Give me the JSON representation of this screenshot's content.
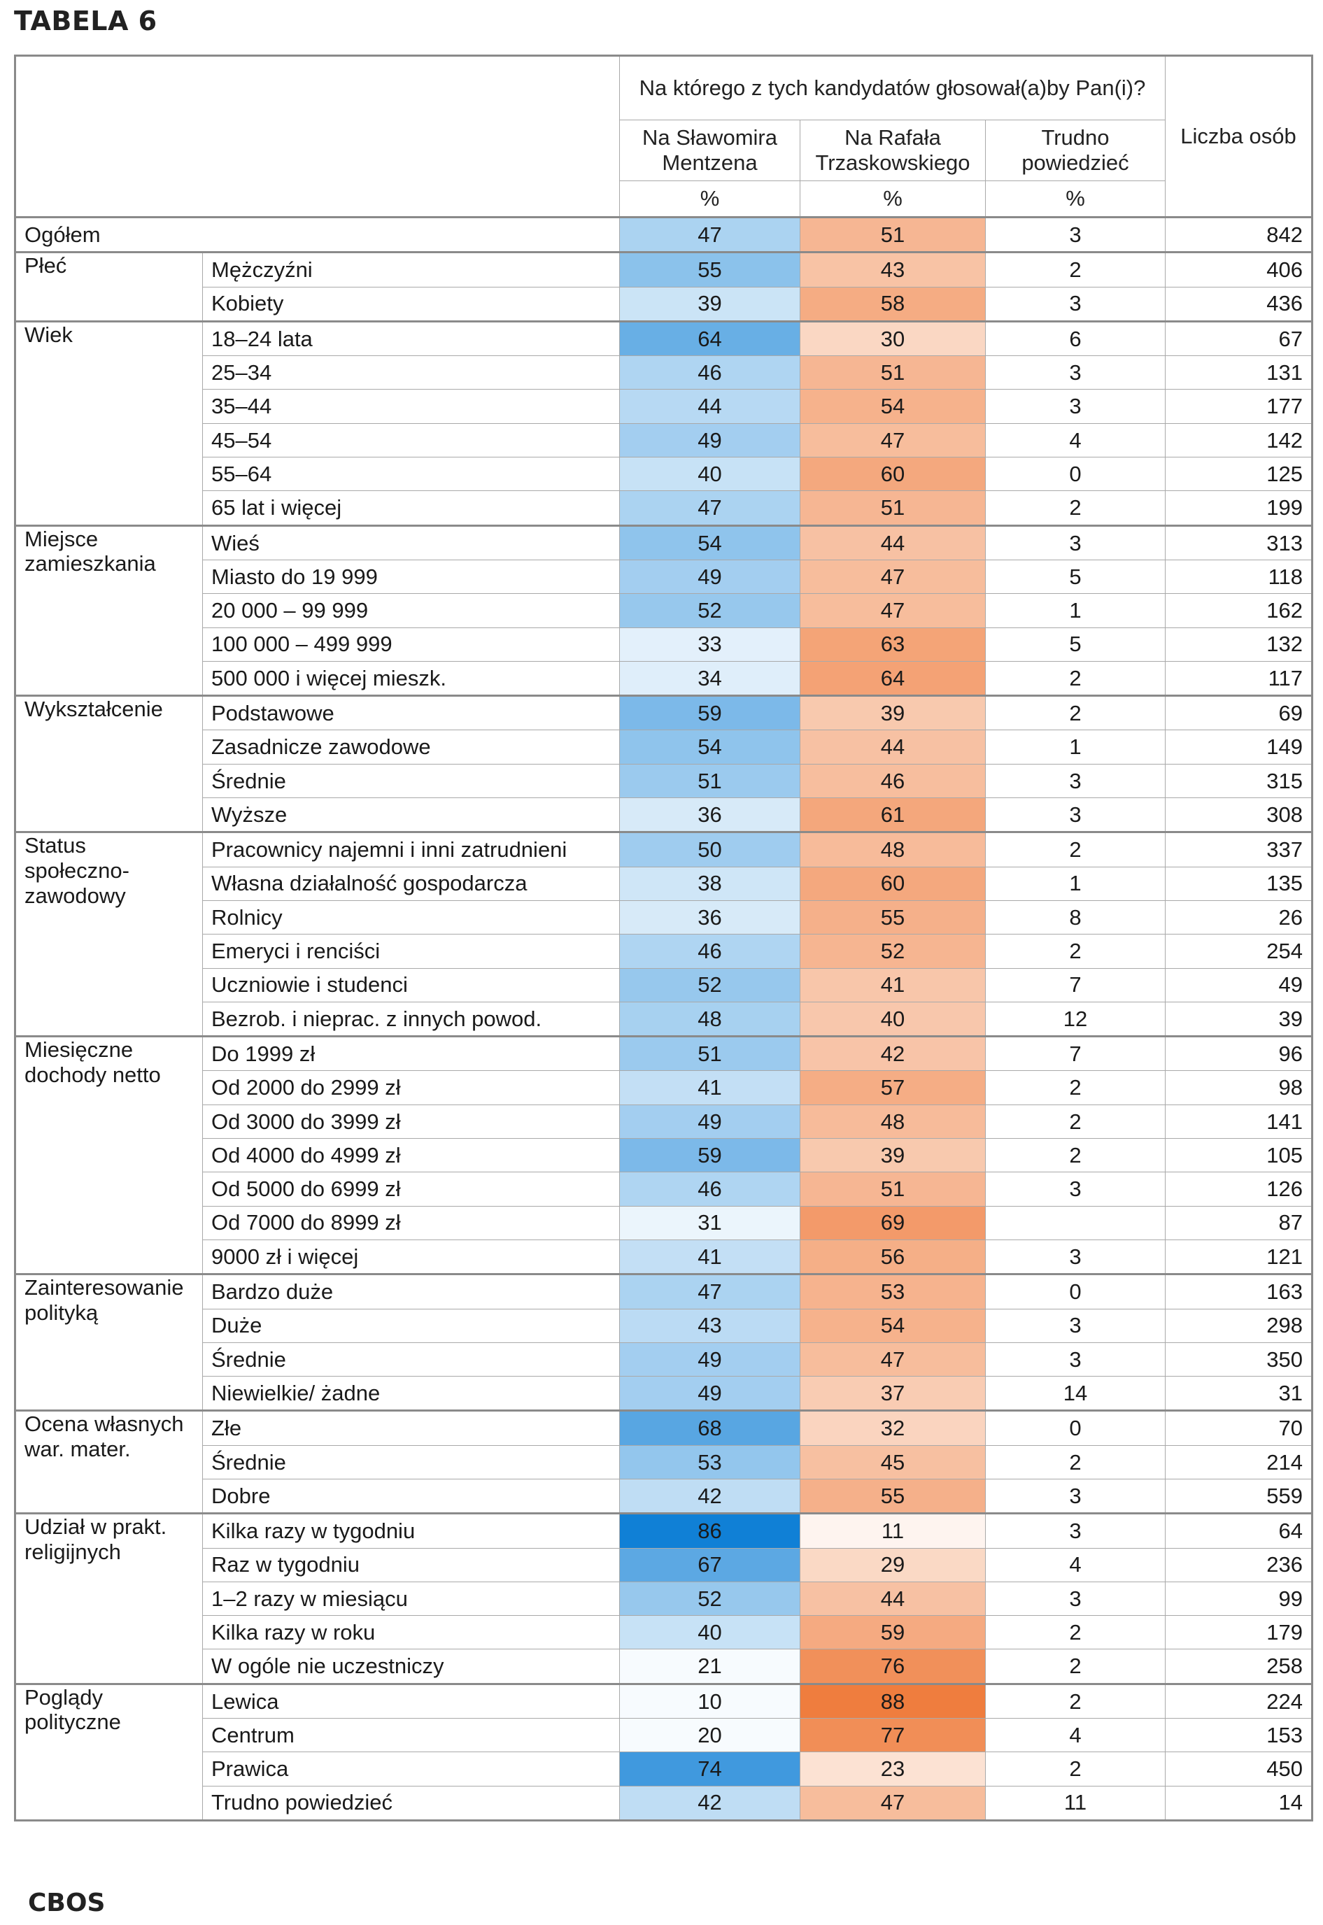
{
  "title": "TABELA 6",
  "footer": "CBOS",
  "header": {
    "question": "Na którego z tych kandydatów głosował(a)by Pan(i)?",
    "col_mentzen": "Na Sławomira Mentzena",
    "col_trzaskowski": "Na Rafała Trzaskowskiego",
    "col_trudno": "Trudno powiedzieć",
    "col_liczba": "Liczba osób",
    "pct_mentzen": "%",
    "pct_trzaskowski": "%",
    "pct_trudno": "%"
  },
  "colors": {
    "mentzen_scale": [
      "#f7fbfe",
      "#1080d6"
    ],
    "trzaskowski_scale": [
      "#fef6f1",
      "#ef7d3e"
    ]
  },
  "groups": [
    {
      "label": "Ogółem",
      "rows": [
        {
          "sub": "",
          "m": 47,
          "t": 51,
          "d": "3",
          "n": "842"
        }
      ]
    },
    {
      "label": "Płeć",
      "rows": [
        {
          "sub": "Mężczyźni",
          "m": 55,
          "t": 43,
          "d": "2",
          "n": "406"
        },
        {
          "sub": "Kobiety",
          "m": 39,
          "t": 58,
          "d": "3",
          "n": "436"
        }
      ]
    },
    {
      "label": "Wiek",
      "rows": [
        {
          "sub": "18–24 lata",
          "m": 64,
          "t": 30,
          "d": "6",
          "n": "67"
        },
        {
          "sub": "25–34",
          "m": 46,
          "t": 51,
          "d": "3",
          "n": "131"
        },
        {
          "sub": "35–44",
          "m": 44,
          "t": 54,
          "d": "3",
          "n": "177"
        },
        {
          "sub": "45–54",
          "m": 49,
          "t": 47,
          "d": "4",
          "n": "142"
        },
        {
          "sub": "55–64",
          "m": 40,
          "t": 60,
          "d": "0",
          "n": "125"
        },
        {
          "sub": "65 lat i więcej",
          "m": 47,
          "t": 51,
          "d": "2",
          "n": "199"
        }
      ]
    },
    {
      "label": "Miejsce zamieszkania",
      "rows": [
        {
          "sub": "Wieś",
          "m": 54,
          "t": 44,
          "d": "3",
          "n": "313"
        },
        {
          "sub": "Miasto do 19 999",
          "m": 49,
          "t": 47,
          "d": "5",
          "n": "118"
        },
        {
          "sub": "20 000 – 99 999",
          "m": 52,
          "t": 47,
          "d": "1",
          "n": "162"
        },
        {
          "sub": "100 000 – 499 999",
          "m": 33,
          "t": 63,
          "d": "5",
          "n": "132"
        },
        {
          "sub": "500 000 i więcej mieszk.",
          "m": 34,
          "t": 64,
          "d": "2",
          "n": "117"
        }
      ]
    },
    {
      "label": "Wykształcenie",
      "rows": [
        {
          "sub": "Podstawowe",
          "m": 59,
          "t": 39,
          "d": "2",
          "n": "69"
        },
        {
          "sub": "Zasadnicze zawodowe",
          "m": 54,
          "t": 44,
          "d": "1",
          "n": "149"
        },
        {
          "sub": "Średnie",
          "m": 51,
          "t": 46,
          "d": "3",
          "n": "315"
        },
        {
          "sub": "Wyższe",
          "m": 36,
          "t": 61,
          "d": "3",
          "n": "308"
        }
      ]
    },
    {
      "label": "Status społeczno-zawodowy",
      "rows": [
        {
          "sub": "Pracownicy najemni i inni zatrudnieni",
          "m": 50,
          "t": 48,
          "d": "2",
          "n": "337"
        },
        {
          "sub": "Własna działalność gospodarcza",
          "m": 38,
          "t": 60,
          "d": "1",
          "n": "135"
        },
        {
          "sub": "Rolnicy",
          "m": 36,
          "t": 55,
          "d": "8",
          "n": "26"
        },
        {
          "sub": "Emeryci i renciści",
          "m": 46,
          "t": 52,
          "d": "2",
          "n": "254"
        },
        {
          "sub": "Uczniowie i studenci",
          "m": 52,
          "t": 41,
          "d": "7",
          "n": "49"
        },
        {
          "sub": "Bezrob. i nieprac. z innych powod.",
          "m": 48,
          "t": 40,
          "d": "12",
          "n": "39"
        }
      ]
    },
    {
      "label": "Miesięczne dochody netto",
      "rows": [
        {
          "sub": "Do 1999 zł",
          "m": 51,
          "t": 42,
          "d": "7",
          "n": "96"
        },
        {
          "sub": "Od 2000 do 2999 zł",
          "m": 41,
          "t": 57,
          "d": "2",
          "n": "98"
        },
        {
          "sub": "Od 3000 do 3999 zł",
          "m": 49,
          "t": 48,
          "d": "2",
          "n": "141"
        },
        {
          "sub": "Od 4000 do 4999 zł",
          "m": 59,
          "t": 39,
          "d": "2",
          "n": "105"
        },
        {
          "sub": "Od 5000 do 6999 zł",
          "m": 46,
          "t": 51,
          "d": "3",
          "n": "126"
        },
        {
          "sub": "Od 7000 do 8999 zł",
          "m": 31,
          "t": 69,
          "d": "",
          "n": "87"
        },
        {
          "sub": "9000 zł i więcej",
          "m": 41,
          "t": 56,
          "d": "3",
          "n": "121"
        }
      ]
    },
    {
      "label": "Zainteresowanie polityką",
      "rows": [
        {
          "sub": "Bardzo duże",
          "m": 47,
          "t": 53,
          "d": "0",
          "n": "163"
        },
        {
          "sub": "Duże",
          "m": 43,
          "t": 54,
          "d": "3",
          "n": "298"
        },
        {
          "sub": "Średnie",
          "m": 49,
          "t": 47,
          "d": "3",
          "n": "350"
        },
        {
          "sub": "Niewielkie/ żadne",
          "m": 49,
          "t": 37,
          "d": "14",
          "n": "31"
        }
      ]
    },
    {
      "label": "Ocena własnych war. mater.",
      "rows": [
        {
          "sub": "Złe",
          "m": 68,
          "t": 32,
          "d": "0",
          "n": "70"
        },
        {
          "sub": "Średnie",
          "m": 53,
          "t": 45,
          "d": "2",
          "n": "214"
        },
        {
          "sub": "Dobre",
          "m": 42,
          "t": 55,
          "d": "3",
          "n": "559"
        }
      ]
    },
    {
      "label": "Udział w prakt. religijnych",
      "rows": [
        {
          "sub": "Kilka razy w tygodniu",
          "m": 86,
          "t": 11,
          "d": "3",
          "n": "64"
        },
        {
          "sub": "Raz w tygodniu",
          "m": 67,
          "t": 29,
          "d": "4",
          "n": "236"
        },
        {
          "sub": "1–2 razy w miesiącu",
          "m": 52,
          "t": 44,
          "d": "3",
          "n": "99"
        },
        {
          "sub": "Kilka razy w roku",
          "m": 40,
          "t": 59,
          "d": "2",
          "n": "179"
        },
        {
          "sub": "W ogóle nie uczestniczy",
          "m": 21,
          "t": 76,
          "d": "2",
          "n": "258"
        }
      ]
    },
    {
      "label": "Poglądy polityczne",
      "rows": [
        {
          "sub": "Lewica",
          "m": 10,
          "t": 88,
          "d": "2",
          "n": "224"
        },
        {
          "sub": "Centrum",
          "m": 20,
          "t": 77,
          "d": "4",
          "n": "153"
        },
        {
          "sub": "Prawica",
          "m": 74,
          "t": 23,
          "d": "2",
          "n": "450"
        },
        {
          "sub": "Trudno powiedzieć",
          "m": 42,
          "t": 47,
          "d": "11",
          "n": "14"
        }
      ]
    }
  ]
}
